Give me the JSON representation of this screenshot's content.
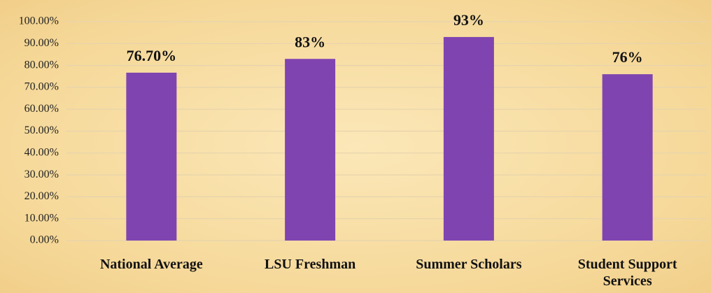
{
  "chart_data": {
    "type": "bar",
    "categories": [
      "National Average",
      "LSU Freshman",
      "Summer Scholars",
      "Student Support Services"
    ],
    "values": [
      76.7,
      83,
      93,
      76
    ],
    "value_labels": [
      "76.70%",
      "83%",
      "93%",
      "76%"
    ],
    "color": "#8044b0",
    "ylim": [
      0,
      100
    ],
    "yticks": [
      {
        "value": 0,
        "label": "0.00%"
      },
      {
        "value": 10,
        "label": "10.00%"
      },
      {
        "value": 20,
        "label": "20.00%"
      },
      {
        "value": 30,
        "label": "30.00%"
      },
      {
        "value": 40,
        "label": "40.00%"
      },
      {
        "value": 50,
        "label": "50.00%"
      },
      {
        "value": 60,
        "label": "60.00%"
      },
      {
        "value": 70,
        "label": "70.00%"
      },
      {
        "value": 80,
        "label": "80.00%"
      },
      {
        "value": 90,
        "label": "90.00%"
      },
      {
        "value": 100,
        "label": "100.00%"
      }
    ],
    "grid": true
  }
}
